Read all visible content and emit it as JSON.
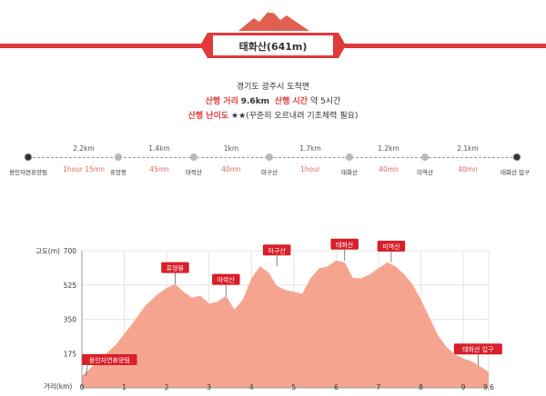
{
  "header": {
    "title": "태화산(641m)",
    "location": "경기도 광주시 도척면",
    "distance_label": "산행 거리",
    "distance_value": "9.6km",
    "time_label": "산행 시간",
    "time_value": "약 5시간",
    "difficulty_label": "산행 난이도",
    "difficulty_value": "★★(꾸준히 오르내려 기초체력 필요)",
    "accent_color": "#e03a3a",
    "mountain_color": "#e06050"
  },
  "route": {
    "stops": [
      "용인자연휴양림",
      "휴양봉",
      "마락산",
      "마구산",
      "태화산",
      "미역산",
      "태화산 입구"
    ],
    "segments": [
      {
        "distance": "2.2km",
        "time": "1hour 15mn"
      },
      {
        "distance": "1.4km",
        "time": "45mn"
      },
      {
        "distance": "1km",
        "time": "40mn"
      },
      {
        "distance": "1.7km",
        "time": "1hour"
      },
      {
        "distance": "1.2km",
        "time": "40mn"
      },
      {
        "distance": "2.1km",
        "time": "40mn"
      }
    ]
  },
  "chart_data": {
    "type": "area",
    "ylabel": "고도(m)",
    "xlabel": "거리(km)",
    "xlim": [
      0,
      9.6
    ],
    "ylim": [
      0,
      700
    ],
    "x_ticks": [
      0,
      1,
      2,
      3,
      4,
      5,
      6,
      7,
      8,
      9,
      9.6
    ],
    "x_tick_labels": [
      "0",
      "1",
      "2",
      "3",
      "4",
      "5",
      "6",
      "7",
      "8",
      "9",
      "9.6"
    ],
    "y_ticks": [
      175,
      350,
      525,
      700
    ],
    "y_tick_labels": [
      "175",
      "350",
      "525",
      "700"
    ],
    "grid": true,
    "fill_color": "#f5a58f",
    "label_color": "#d8202a",
    "x": [
      0,
      0.2,
      0.5,
      0.8,
      1.2,
      1.5,
      1.8,
      2.0,
      2.2,
      2.4,
      2.6,
      2.8,
      3.0,
      3.2,
      3.4,
      3.6,
      3.8,
      4.0,
      4.2,
      4.4,
      4.6,
      4.8,
      5.0,
      5.2,
      5.4,
      5.6,
      5.8,
      6.0,
      6.2,
      6.4,
      6.6,
      6.8,
      7.0,
      7.2,
      7.4,
      7.6,
      7.8,
      8.0,
      8.2,
      8.4,
      8.6,
      8.8,
      9.0,
      9.2,
      9.4,
      9.6
    ],
    "y": [
      60,
      100,
      160,
      220,
      330,
      420,
      480,
      510,
      530,
      490,
      460,
      470,
      430,
      440,
      470,
      400,
      450,
      560,
      620,
      590,
      520,
      500,
      490,
      480,
      560,
      610,
      620,
      650,
      640,
      560,
      560,
      580,
      610,
      640,
      620,
      580,
      530,
      450,
      360,
      270,
      210,
      170,
      150,
      135,
      110,
      80
    ],
    "annotations": [
      {
        "label": "용인자연휴양림",
        "x": 0.05,
        "y": 60
      },
      {
        "label": "휴양봉",
        "x": 2.2,
        "y": 530
      },
      {
        "label": "마락산",
        "x": 3.4,
        "y": 470
      },
      {
        "label": "마구산",
        "x": 4.6,
        "y": 620
      },
      {
        "label": "태화산",
        "x": 6.2,
        "y": 650
      },
      {
        "label": "미역산",
        "x": 7.3,
        "y": 640
      },
      {
        "label": "태화산 입구",
        "x": 9.35,
        "y": 115
      }
    ]
  }
}
